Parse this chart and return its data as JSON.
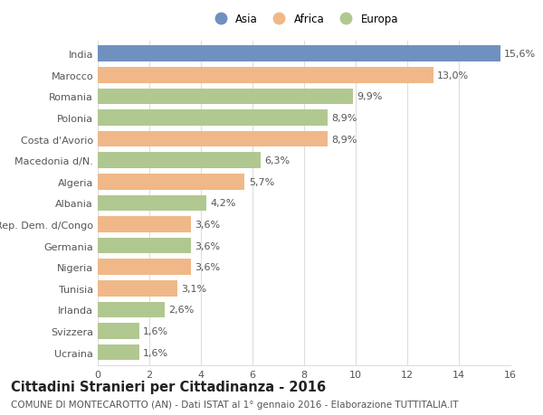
{
  "categories": [
    "India",
    "Marocco",
    "Romania",
    "Polonia",
    "Costa d'Avorio",
    "Macedonia d/N.",
    "Algeria",
    "Albania",
    "Rep. Dem. d/Congo",
    "Germania",
    "Nigeria",
    "Tunisia",
    "Irlanda",
    "Svizzera",
    "Ucraina"
  ],
  "values": [
    15.6,
    13.0,
    9.9,
    8.9,
    8.9,
    6.3,
    5.7,
    4.2,
    3.6,
    3.6,
    3.6,
    3.1,
    2.6,
    1.6,
    1.6
  ],
  "labels": [
    "15,6%",
    "13,0%",
    "9,9%",
    "8,9%",
    "8,9%",
    "6,3%",
    "5,7%",
    "4,2%",
    "3,6%",
    "3,6%",
    "3,6%",
    "3,1%",
    "2,6%",
    "1,6%",
    "1,6%"
  ],
  "continents": [
    "Asia",
    "Africa",
    "Europa",
    "Europa",
    "Africa",
    "Europa",
    "Africa",
    "Europa",
    "Africa",
    "Europa",
    "Africa",
    "Africa",
    "Europa",
    "Europa",
    "Europa"
  ],
  "colors": {
    "Asia": "#7090c0",
    "Africa": "#f0b888",
    "Europa": "#b0c890"
  },
  "legend_labels": [
    "Asia",
    "Africa",
    "Europa"
  ],
  "xlim": [
    0,
    16
  ],
  "xticks": [
    0,
    2,
    4,
    6,
    8,
    10,
    12,
    14,
    16
  ],
  "title": "Cittadini Stranieri per Cittadinanza - 2016",
  "subtitle": "COMUNE DI MONTECAROTTO (AN) - Dati ISTAT al 1° gennaio 2016 - Elaborazione TUTTITALIA.IT",
  "background_color": "#ffffff",
  "grid_color": "#dddddd",
  "bar_height": 0.75,
  "label_fontsize": 8,
  "tick_fontsize": 8,
  "title_fontsize": 10.5,
  "subtitle_fontsize": 7.5
}
